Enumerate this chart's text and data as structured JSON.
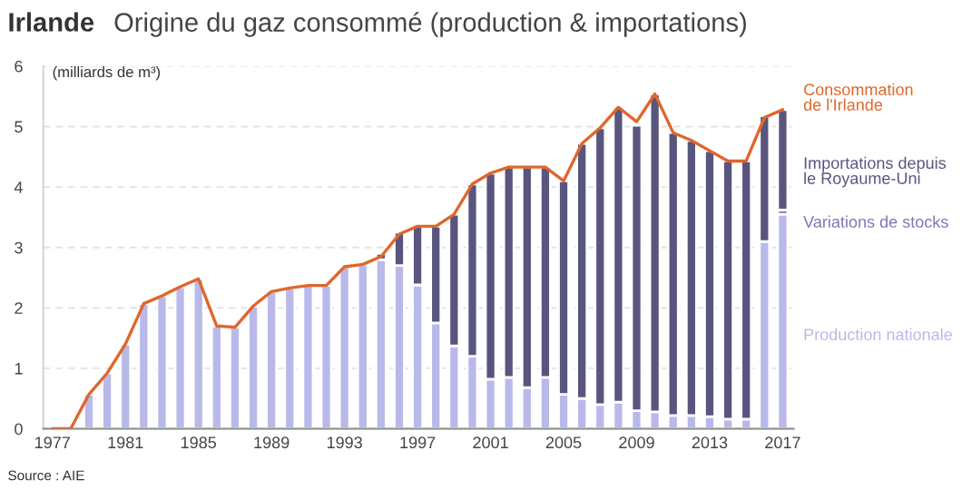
{
  "chart_data": {
    "type": "bar",
    "title": "Irlande",
    "subtitle": "Origine du gaz consommé (production & importations)",
    "ylabel": "(milliards de m³)",
    "x": [
      1977,
      1978,
      1979,
      1980,
      1981,
      1982,
      1983,
      1984,
      1985,
      1986,
      1987,
      1988,
      1989,
      1990,
      1991,
      1992,
      1993,
      1994,
      1995,
      1996,
      1997,
      1998,
      1999,
      2000,
      2001,
      2002,
      2003,
      2004,
      2005,
      2006,
      2007,
      2008,
      2009,
      2010,
      2011,
      2012,
      2013,
      2014,
      2015,
      2016,
      2017
    ],
    "stacked": true,
    "series": [
      {
        "name": "Production nationale",
        "color": "#b9b9e9",
        "values": [
          null,
          null,
          0.57,
          0.92,
          1.4,
          2.07,
          2.2,
          2.35,
          2.48,
          1.7,
          1.68,
          2.03,
          2.27,
          2.33,
          2.37,
          2.37,
          2.68,
          2.72,
          2.8,
          2.7,
          2.38,
          1.75,
          1.37,
          1.2,
          0.82,
          0.85,
          0.68,
          0.85,
          0.57,
          0.5,
          0.4,
          0.44,
          0.3,
          0.28,
          0.22,
          0.22,
          0.2,
          0.16,
          0.16,
          3.1,
          3.55
        ]
      },
      {
        "name": "Variations de stocks",
        "color": "#7b77b5",
        "values": [
          null,
          null,
          null,
          null,
          null,
          null,
          null,
          null,
          null,
          null,
          null,
          null,
          null,
          null,
          null,
          null,
          null,
          null,
          null,
          null,
          null,
          null,
          null,
          null,
          null,
          null,
          null,
          null,
          null,
          null,
          null,
          null,
          null,
          null,
          null,
          null,
          null,
          null,
          null,
          null,
          0.07
        ]
      },
      {
        "name": "Importations depuis le Royaume-Uni",
        "color": "#58557f",
        "values": [
          null,
          null,
          null,
          null,
          null,
          null,
          null,
          null,
          null,
          null,
          null,
          null,
          null,
          null,
          null,
          null,
          null,
          null,
          0.1,
          0.55,
          0.97,
          1.6,
          2.18,
          2.85,
          3.41,
          3.48,
          3.65,
          3.48,
          3.53,
          4.22,
          4.58,
          4.88,
          4.72,
          5.26,
          4.68,
          4.55,
          4.4,
          4.27,
          4.27,
          2.08,
          1.66
        ]
      },
      {
        "name": "Consommation de l'Irlande",
        "type": "line",
        "color": "#e0662a",
        "values": [
          0,
          0,
          0.57,
          0.92,
          1.4,
          2.07,
          2.2,
          2.35,
          2.48,
          1.7,
          1.68,
          2.03,
          2.27,
          2.33,
          2.37,
          2.37,
          2.68,
          2.72,
          2.85,
          3.22,
          3.35,
          3.35,
          3.55,
          4.05,
          4.23,
          4.33,
          4.33,
          4.33,
          4.1,
          4.72,
          4.98,
          5.32,
          5.08,
          5.54,
          4.9,
          4.77,
          4.6,
          4.43,
          4.43,
          5.15,
          5.28
        ]
      }
    ],
    "xlim": [
      1976.5,
      2017.6
    ],
    "xticks": [
      1977,
      1981,
      1985,
      1989,
      1993,
      1997,
      2001,
      2005,
      2009,
      2013,
      2017
    ],
    "ylim": [
      0,
      6
    ],
    "yticks": [
      0,
      1,
      2,
      3,
      4,
      5,
      6
    ],
    "grid": "y",
    "legend": "right",
    "annotations": [
      "Source : AIE"
    ]
  }
}
